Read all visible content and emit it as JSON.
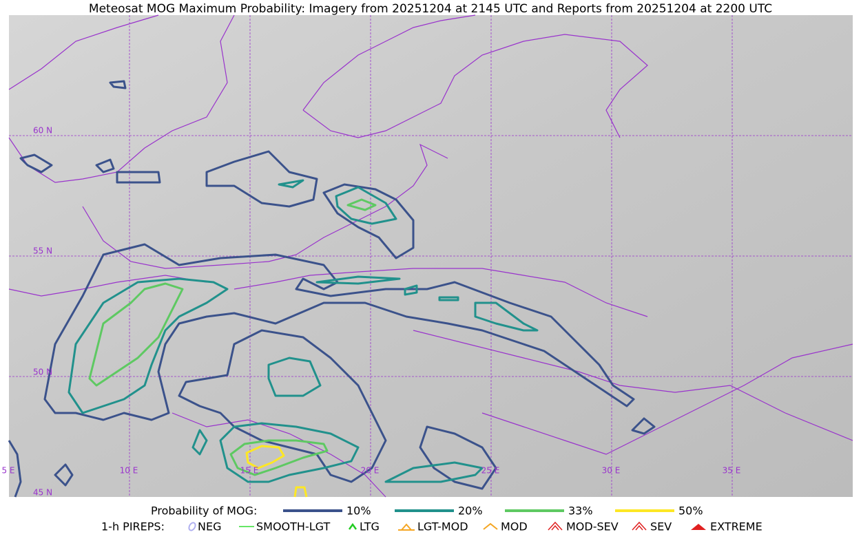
{
  "title": "Meteosat MOG Maximum Probability: Imagery from 20251204 at 2145 UTC and Reports from 20251204 at 2200 UTC",
  "map": {
    "lat_labels": [
      "60 N",
      "55 N",
      "50 N",
      "45 N"
    ],
    "lon_labels": [
      "5 E",
      "10 E",
      "15 E",
      "20 E",
      "25 E",
      "30 E",
      "35 E"
    ]
  },
  "legend": {
    "mog_title": "Probability of MOG:",
    "mog_items": [
      {
        "label": "10%",
        "color": "#3b528b"
      },
      {
        "label": "20%",
        "color": "#21918c"
      },
      {
        "label": "33%",
        "color": "#5ec962"
      },
      {
        "label": "50%",
        "color": "#fde725"
      }
    ],
    "pirep_title": "1-h PIREPS:",
    "pirep_items": [
      {
        "label": "NEG",
        "color": "#b0b0f0"
      },
      {
        "label": "SMOOTH-LGT",
        "color": "#33dd33"
      },
      {
        "label": "LTG",
        "color": "#22cc22"
      },
      {
        "label": "LGT-MOD",
        "color": "#f5a623"
      },
      {
        "label": "MOD",
        "color": "#f5a623"
      },
      {
        "label": "MOD-SEV",
        "color": "#e02020"
      },
      {
        "label": "SEV",
        "color": "#e02020"
      },
      {
        "label": "EXTREME",
        "color": "#e02020"
      }
    ]
  }
}
